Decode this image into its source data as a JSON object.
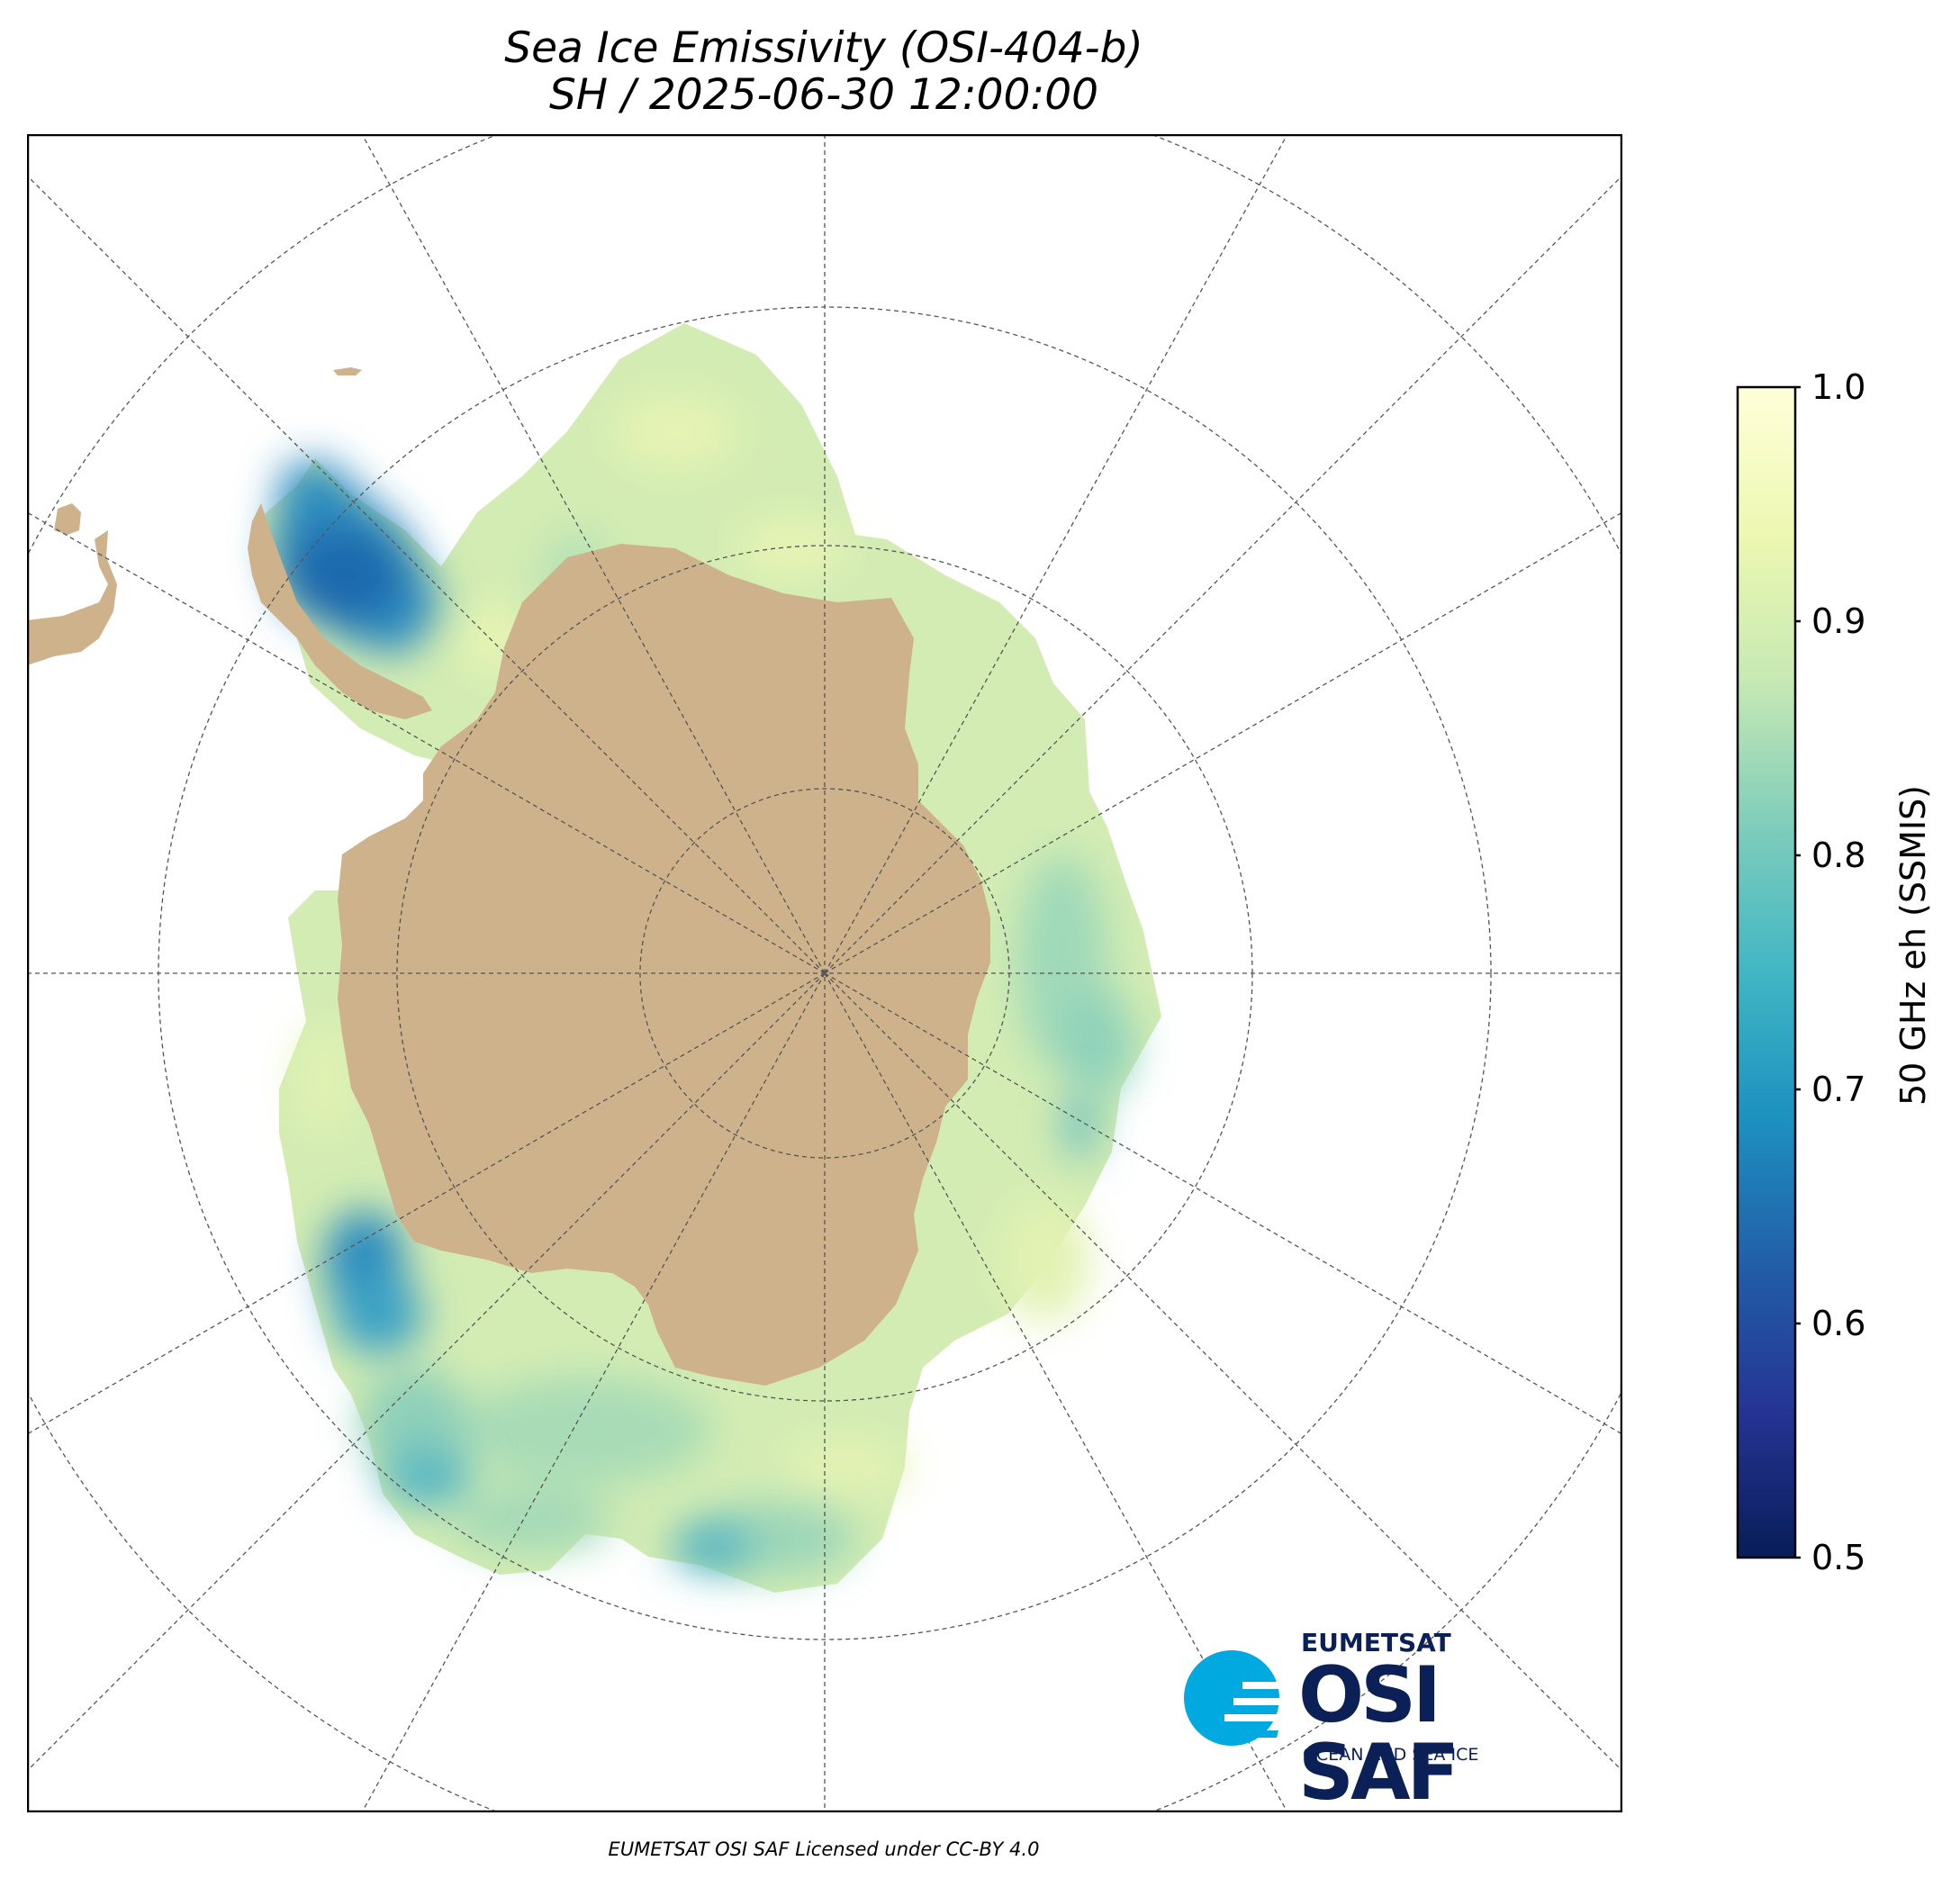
{
  "title": {
    "line1": "Sea Ice Emissivity (OSI-404-b)",
    "line2": "SH / 2025-06-30 12:00:00"
  },
  "colorbar": {
    "label": "50 GHz eh (SSMIS)",
    "ticks": [
      "1.0",
      "0.9",
      "0.8",
      "0.7",
      "0.6",
      "0.5"
    ],
    "range": [
      0.5,
      1.0
    ],
    "colormap": "YlGnBu",
    "colors": [
      "#081d58",
      "#253494",
      "#225ea8",
      "#1d91c0",
      "#41b6c4",
      "#7fcdbb",
      "#c7e9b4",
      "#edf8b1",
      "#ffffd9"
    ]
  },
  "map": {
    "projection": "south polar stereographic",
    "land_color": "#cdb28b",
    "ocean_color": "#ffffff",
    "gridline_color": "#555555"
  },
  "logo": {
    "org": "EUMETSAT",
    "name": "OSI SAF",
    "tagline": "OCEAN AND SEA ICE",
    "accent_color": "#00a9e0",
    "brand_color": "#0a2056"
  },
  "footer": "EUMETSAT OSI SAF Licensed under CC-BY 4.0"
}
